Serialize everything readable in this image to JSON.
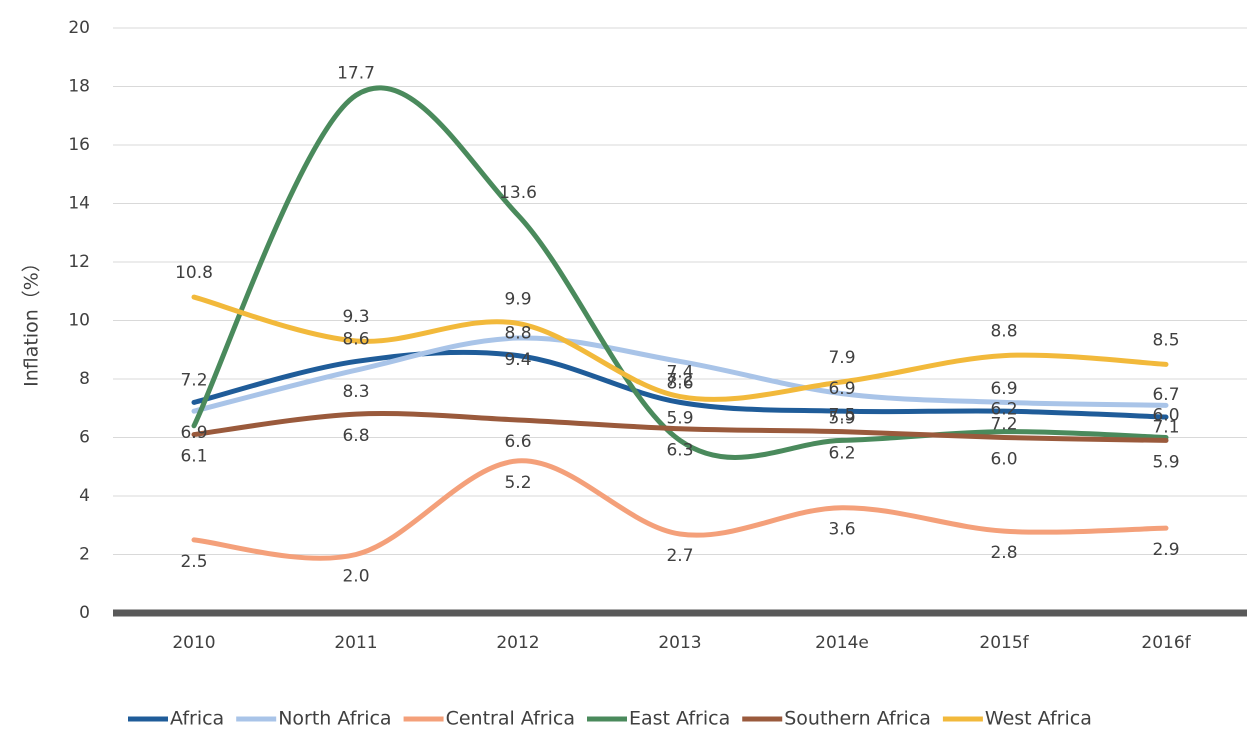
{
  "chart_data": {
    "type": "line",
    "y_label": "Inflation（%）",
    "categories": [
      "2010",
      "2011",
      "2012",
      "2013",
      "2014e",
      "2015f",
      "2016f"
    ],
    "series": [
      {
        "name": "Africa",
        "color": "#1f5c99",
        "values": [
          7.2,
          8.6,
          8.8,
          7.2,
          6.9,
          6.9,
          6.7
        ],
        "value_labels": [
          "7.2",
          "8.6",
          "8.8",
          "7.2",
          "6.9",
          "6.9",
          "6.7"
        ]
      },
      {
        "name": "North Africa",
        "color": "#a9c4e8",
        "values": [
          6.9,
          8.3,
          9.4,
          8.6,
          7.5,
          7.2,
          7.1
        ],
        "value_labels": [
          "6.9",
          "8.3",
          "9.4",
          "8.6",
          "7.5",
          "7.2",
          "7.1"
        ]
      },
      {
        "name": "Central Africa",
        "color": "#f4a07a",
        "values": [
          2.5,
          2.0,
          5.2,
          2.7,
          3.6,
          2.8,
          2.9
        ],
        "value_labels": [
          "2.5",
          "2.0",
          "5.2",
          "2.7",
          "3.6",
          "2.8",
          "2.9"
        ]
      },
      {
        "name": "East Africa",
        "color": "#4a8a5c",
        "values": [
          6.4,
          17.7,
          13.6,
          5.9,
          5.9,
          6.2,
          6.0
        ],
        "value_labels": [
          null,
          "17.7",
          "13.6",
          "5.9",
          "5.9",
          "6.2",
          "6.0"
        ]
      },
      {
        "name": "Southern Africa",
        "color": "#9a5a3c",
        "values": [
          6.1,
          6.8,
          6.6,
          6.3,
          6.2,
          6.0,
          5.9
        ],
        "value_labels": [
          "6.1",
          "6.8",
          "6.6",
          "6.3",
          "6.2",
          "6.0",
          "5.9"
        ]
      },
      {
        "name": "West Africa",
        "color": "#f2b93b",
        "values": [
          10.8,
          9.3,
          9.9,
          7.4,
          7.9,
          8.8,
          8.5
        ],
        "value_labels": [
          "10.8",
          "9.3",
          "9.9",
          "7.4",
          "7.9",
          "8.8",
          "8.5"
        ]
      }
    ],
    "ylim": [
      0,
      20
    ],
    "yticks": [
      0,
      2,
      4,
      6,
      8,
      10,
      12,
      14,
      16,
      18,
      20
    ],
    "grid": true,
    "legend": "bottom"
  }
}
